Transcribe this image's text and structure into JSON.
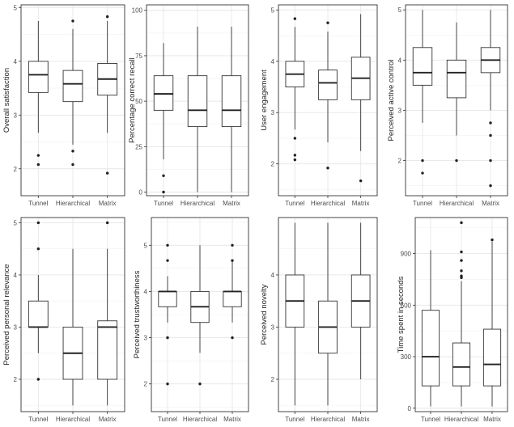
{
  "chart_data": [
    {
      "type": "box",
      "ylabel": "Overall satisfaction",
      "categories": [
        "Tunnel",
        "Hierarchical",
        "Matrix"
      ],
      "ylim": [
        1.5,
        5.05
      ],
      "yticks": [
        2,
        3,
        4,
        5
      ],
      "tick_labels": [
        "2",
        "3",
        "4",
        "5"
      ],
      "boxes": [
        {
          "whisker_low": 2.67,
          "q1": 3.42,
          "median": 3.75,
          "q3": 4.0,
          "whisker_high": 4.75,
          "outliers": [
            2.08,
            2.25
          ]
        },
        {
          "whisker_low": 2.45,
          "q1": 3.25,
          "median": 3.58,
          "q3": 3.83,
          "whisker_high": 4.6,
          "outliers": [
            2.08,
            2.33,
            4.75
          ]
        },
        {
          "whisker_low": 2.67,
          "q1": 3.37,
          "median": 3.67,
          "q3": 3.96,
          "whisker_high": 4.75,
          "outliers": [
            1.92,
            4.83
          ]
        }
      ]
    },
    {
      "type": "box",
      "ylabel": "Percentage correct recall",
      "categories": [
        "Tunnel",
        "Hierarchical",
        "Matrix"
      ],
      "ylim": [
        -2,
        103
      ],
      "yticks": [
        0,
        25,
        50,
        75,
        100
      ],
      "tick_labels": [
        "0",
        "25",
        "50",
        "75",
        "100"
      ],
      "boxes": [
        {
          "whisker_low": 18,
          "q1": 45,
          "median": 54,
          "q3": 64,
          "whisker_high": 82,
          "outliers": [
            0,
            9
          ]
        },
        {
          "whisker_low": 0,
          "q1": 36,
          "median": 45,
          "q3": 64,
          "whisker_high": 91,
          "outliers": []
        },
        {
          "whisker_low": 0,
          "q1": 36,
          "median": 45,
          "q3": 64,
          "whisker_high": 91,
          "outliers": []
        }
      ]
    },
    {
      "type": "box",
      "ylabel": "User engagement",
      "categories": [
        "Tunnel",
        "Hierarchical",
        "Matrix"
      ],
      "ylim": [
        1.38,
        5.1
      ],
      "yticks": [
        2,
        3,
        4,
        5
      ],
      "tick_labels": [
        "2",
        "3",
        "4",
        "5"
      ],
      "boxes": [
        {
          "whisker_low": 2.67,
          "q1": 3.5,
          "median": 3.75,
          "q3": 4.0,
          "whisker_high": 4.67,
          "outliers": [
            2.08,
            2.17,
            2.5,
            4.83
          ]
        },
        {
          "whisker_low": 2.42,
          "q1": 3.25,
          "median": 3.58,
          "q3": 3.83,
          "whisker_high": 4.58,
          "outliers": [
            1.92,
            4.75
          ]
        },
        {
          "whisker_low": 2.25,
          "q1": 3.25,
          "median": 3.67,
          "q3": 4.08,
          "whisker_high": 4.92,
          "outliers": [
            1.67
          ]
        }
      ]
    },
    {
      "type": "box",
      "ylabel": "Perceived active control",
      "categories": [
        "Tunnel",
        "Hierarchical",
        "Matrix"
      ],
      "ylim": [
        1.3,
        5.1
      ],
      "yticks": [
        2,
        3,
        4,
        5
      ],
      "tick_labels": [
        "2",
        "3",
        "4",
        "5"
      ],
      "boxes": [
        {
          "whisker_low": 2.75,
          "q1": 3.5,
          "median": 3.75,
          "q3": 4.25,
          "whisker_high": 5.0,
          "outliers": [
            1.75,
            2.0
          ]
        },
        {
          "whisker_low": 2.5,
          "q1": 3.25,
          "median": 3.75,
          "q3": 4.0,
          "whisker_high": 4.75,
          "outliers": [
            2.0
          ]
        },
        {
          "whisker_low": 3.0,
          "q1": 3.75,
          "median": 4.0,
          "q3": 4.25,
          "whisker_high": 5.0,
          "outliers": [
            1.5,
            2.0,
            2.5,
            2.75
          ]
        }
      ]
    },
    {
      "type": "box",
      "ylabel": "Perceived personal relevance",
      "categories": [
        "Tunnel",
        "Hierarchical",
        "Matrix"
      ],
      "ylim": [
        1.38,
        5.1
      ],
      "yticks": [
        2,
        3,
        4,
        5
      ],
      "tick_labels": [
        "2",
        "3",
        "4",
        "5"
      ],
      "boxes": [
        {
          "whisker_low": 2.5,
          "q1": 3.0,
          "median": 3.0,
          "q3": 3.5,
          "whisker_high": 4.0,
          "outliers": [
            2.0,
            4.5,
            5.0
          ]
        },
        {
          "whisker_low": 1.5,
          "q1": 2.0,
          "median": 2.5,
          "q3": 3.0,
          "whisker_high": 4.5,
          "outliers": []
        },
        {
          "whisker_low": 1.5,
          "q1": 2.0,
          "median": 3.0,
          "q3": 3.12,
          "whisker_high": 4.5,
          "outliers": [
            5.0
          ]
        }
      ]
    },
    {
      "type": "box",
      "ylabel": "Perceived trustworthiness",
      "categories": [
        "Tunnel",
        "Hierarchical",
        "Matrix"
      ],
      "ylim": [
        1.4,
        5.6
      ],
      "yticks": [
        2,
        3,
        4,
        5
      ],
      "tick_labels": [
        "2",
        "3",
        "4",
        "5"
      ],
      "boxes": [
        {
          "whisker_low": 3.33,
          "q1": 3.67,
          "median": 4.0,
          "q3": 4.0,
          "whisker_high": 4.33,
          "outliers": [
            2.0,
            3.0,
            4.67,
            5.0
          ]
        },
        {
          "whisker_low": 2.67,
          "q1": 3.33,
          "median": 3.67,
          "q3": 4.0,
          "whisker_high": 5.0,
          "outliers": [
            2.0
          ]
        },
        {
          "whisker_low": 3.33,
          "q1": 3.67,
          "median": 4.0,
          "q3": 4.0,
          "whisker_high": 4.67,
          "outliers": [
            3.0,
            4.67,
            5.0
          ]
        }
      ]
    },
    {
      "type": "box",
      "ylabel": "Perceived novelty",
      "categories": [
        "Tunnel",
        "Hierarchical",
        "Matrix"
      ],
      "ylim": [
        1.38,
        5.1
      ],
      "yticks": [
        2,
        3,
        4
      ],
      "tick_labels": [
        "2",
        "3",
        "4"
      ],
      "boxes": [
        {
          "whisker_low": 1.5,
          "q1": 3.0,
          "median": 3.5,
          "q3": 4.0,
          "whisker_high": 5.0,
          "outliers": []
        },
        {
          "whisker_low": 1.5,
          "q1": 2.5,
          "median": 3.0,
          "q3": 3.5,
          "whisker_high": 5.0,
          "outliers": []
        },
        {
          "whisker_low": 2.0,
          "q1": 3.0,
          "median": 3.5,
          "q3": 4.0,
          "whisker_high": 5.0,
          "outliers": []
        }
      ]
    },
    {
      "type": "box",
      "ylabel": "Time spent in seconds",
      "categories": [
        "Tunnel",
        "Hierarchical",
        "Matrix"
      ],
      "ylim": [
        -20,
        1110
      ],
      "yticks": [
        0,
        300,
        600,
        900
      ],
      "tick_labels": [
        "0",
        "300",
        "600",
        "900"
      ],
      "boxes": [
        {
          "whisker_low": 10,
          "q1": 130,
          "median": 300,
          "q3": 570,
          "whisker_high": 920,
          "outliers": []
        },
        {
          "whisker_low": 10,
          "q1": 130,
          "median": 240,
          "q3": 380,
          "whisker_high": 740,
          "outliers": [
            760,
            770,
            800,
            860,
            910,
            1080
          ]
        },
        {
          "whisker_low": 10,
          "q1": 130,
          "median": 255,
          "q3": 460,
          "whisker_high": 970,
          "outliers": [
            980
          ]
        }
      ]
    }
  ]
}
